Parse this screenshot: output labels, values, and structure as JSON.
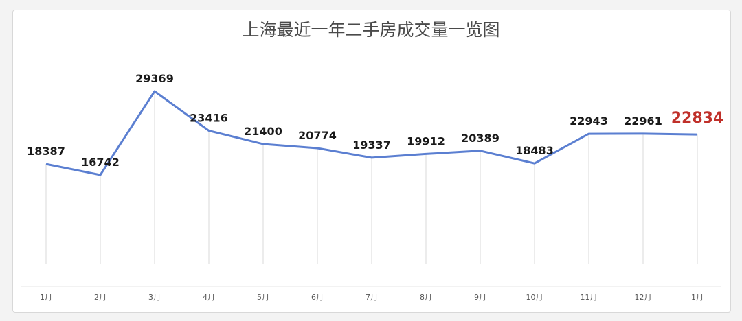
{
  "chart_data": {
    "type": "line",
    "title": "上海最近一年二手房成交量一览图",
    "xlabel": "",
    "ylabel": "",
    "categories": [
      "1月",
      "2月",
      "3月",
      "4月",
      "5月",
      "6月",
      "7月",
      "8月",
      "9月",
      "10月",
      "11月",
      "12月",
      "1月"
    ],
    "values": [
      18387,
      16742,
      29369,
      23416,
      21400,
      20774,
      19337,
      19912,
      20389,
      18483,
      22943,
      22961,
      22834
    ],
    "highlight_index": 12,
    "ylim": [
      0,
      35000
    ],
    "grid": false,
    "legend": "none",
    "colors": {
      "line": "#5b7fd1",
      "label": "#1a1a1a",
      "highlight": "#c0302a",
      "drop_line": "#d9d9d9"
    }
  }
}
